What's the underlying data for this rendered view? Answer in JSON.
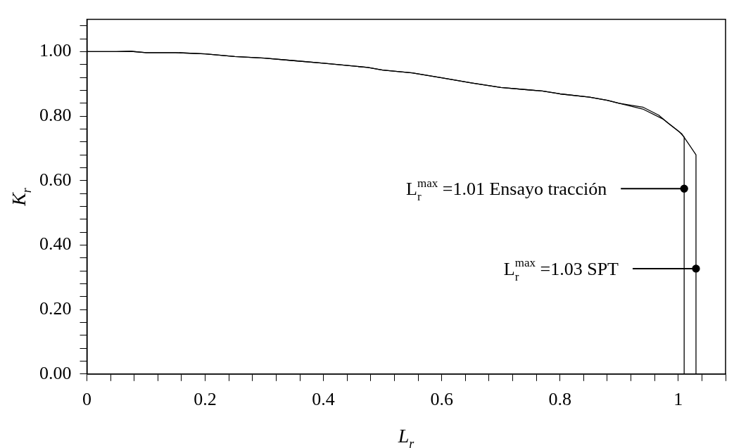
{
  "chart_data": {
    "type": "line",
    "xlabel": "L$_{r}$",
    "ylabel": "K$_{r}$",
    "series": [
      {
        "color": "#000000",
        "x": [
          0,
          0.05,
          0.075,
          0.1,
          0.15,
          0.2,
          0.25,
          0.3,
          0.35,
          0.4,
          0.475,
          0.5,
          0.55,
          0.6,
          0.65,
          0.7,
          0.75,
          0.77,
          0.8,
          0.85,
          0.88,
          0.9,
          0.94,
          0.975,
          1.002,
          1.01,
          1.01
        ],
        "values": [
          1.0,
          1.0,
          1.001,
          0.997,
          0.997,
          0.993,
          0.985,
          0.98,
          0.972,
          0.964,
          0.951,
          0.943,
          0.934,
          0.919,
          0.903,
          0.889,
          0.881,
          0.878,
          0.869,
          0.859,
          0.849,
          0.84,
          0.822,
          0.79,
          0.751,
          0.735,
          0
        ]
      },
      {
        "color": "#000000",
        "x": [
          0,
          0.05,
          0.075,
          0.1,
          0.15,
          0.2,
          0.25,
          0.3,
          0.35,
          0.4,
          0.475,
          0.5,
          0.55,
          0.6,
          0.65,
          0.7,
          0.75,
          0.77,
          0.8,
          0.85,
          0.88,
          0.9,
          0.94,
          0.967,
          0.983,
          1.006,
          1.02,
          1.03,
          1.03
        ],
        "values": [
          1.0,
          1.0,
          1.001,
          0.997,
          0.997,
          0.993,
          0.985,
          0.98,
          0.972,
          0.964,
          0.951,
          0.943,
          0.934,
          0.919,
          0.903,
          0.889,
          0.881,
          0.878,
          0.869,
          0.859,
          0.849,
          0.84,
          0.828,
          0.803,
          0.778,
          0.745,
          0.707,
          0.68,
          0
        ]
      },
      {
        "type": "scatter",
        "color": "#000000",
        "marker": "circle",
        "x": [
          1.01,
          1.03
        ],
        "values": [
          0.575,
          0.327
        ]
      }
    ],
    "annotations": [
      "L$_{r}$$^{max}$ =1.01 Ensayo tracción",
      "L$_{r}$$^{max}$ =1.03 SPT"
    ],
    "xlim": [
      0,
      1.08
    ],
    "xticks": [
      0,
      {
        "value": 0.04,
        "label": null
      },
      {
        "value": 0.08,
        "label": null
      },
      {
        "value": 0.12,
        "label": null
      },
      {
        "value": 0.16,
        "label": null
      },
      0.2,
      {
        "value": 0.24,
        "label": null
      },
      {
        "value": 0.28,
        "label": null
      },
      {
        "value": 0.32,
        "label": null
      },
      {
        "value": 0.36,
        "label": null
      },
      0.4,
      {
        "value": 0.44,
        "label": null
      },
      {
        "value": 0.48,
        "label": null
      },
      {
        "value": 0.52,
        "label": null
      },
      {
        "value": 0.56,
        "label": null
      },
      0.6,
      {
        "value": 0.64,
        "label": null
      },
      {
        "value": 0.68,
        "label": null
      },
      {
        "value": 0.72,
        "label": null
      },
      {
        "value": 0.76,
        "label": null
      },
      0.8,
      {
        "value": 0.84,
        "label": null
      },
      {
        "value": 0.88,
        "label": null
      },
      {
        "value": 0.92,
        "label": null
      },
      {
        "value": 0.96,
        "label": null
      },
      1,
      {
        "value": 1.04,
        "label": null
      },
      {
        "value": 1.08,
        "label": null
      }
    ],
    "ylim": [
      0,
      1.1
    ],
    "yticks": [
      {
        "value": 0,
        "label": "0.00"
      },
      {
        "value": 0.04,
        "label": null
      },
      {
        "value": 0.08,
        "label": null
      },
      {
        "value": 0.12,
        "label": null
      },
      {
        "value": 0.16,
        "label": null
      },
      {
        "value": 0.2,
        "label": "0.20"
      },
      {
        "value": 0.24,
        "label": null
      },
      {
        "value": 0.28,
        "label": null
      },
      {
        "value": 0.32,
        "label": null
      },
      {
        "value": 0.36,
        "label": null
      },
      {
        "value": 0.4,
        "label": "0.40"
      },
      {
        "value": 0.44,
        "label": null
      },
      {
        "value": 0.48,
        "label": null
      },
      {
        "value": 0.52,
        "label": null
      },
      {
        "value": 0.56,
        "label": null
      },
      {
        "value": 0.6,
        "label": "0.60"
      },
      {
        "value": 0.64,
        "label": null
      },
      {
        "value": 0.68,
        "label": null
      },
      {
        "value": 0.72,
        "label": null
      },
      {
        "value": 0.76,
        "label": null
      },
      {
        "value": 0.8,
        "label": "0.80"
      },
      {
        "value": 0.84,
        "label": null
      },
      {
        "value": 0.88,
        "label": null
      },
      {
        "value": 0.92,
        "label": null
      },
      {
        "value": 0.96,
        "label": null
      },
      {
        "value": 1.0,
        "label": "1.00"
      },
      {
        "value": 1.04,
        "label": null
      },
      {
        "value": 1.08,
        "label": null
      }
    ],
    "grid": false,
    "legend": false,
    "marker": "none",
    "line_style": "solid"
  }
}
